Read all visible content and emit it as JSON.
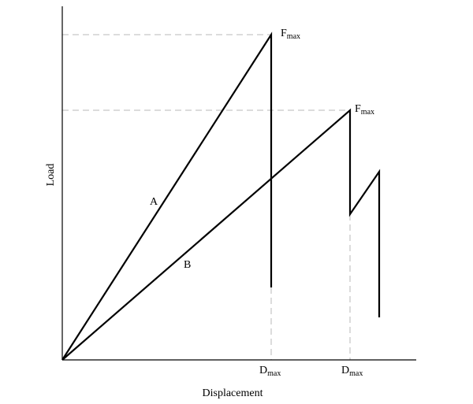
{
  "axes": {
    "y_label": "Load",
    "x_label": "Displacement"
  },
  "curves": [
    {
      "label": "A"
    },
    {
      "label": "B"
    }
  ],
  "annotations": [
    {
      "main": "F",
      "sub": "max"
    },
    {
      "main": "F",
      "sub": "max"
    },
    {
      "main": "D",
      "sub": "max"
    },
    {
      "main": "D",
      "sub": "max"
    }
  ]
}
